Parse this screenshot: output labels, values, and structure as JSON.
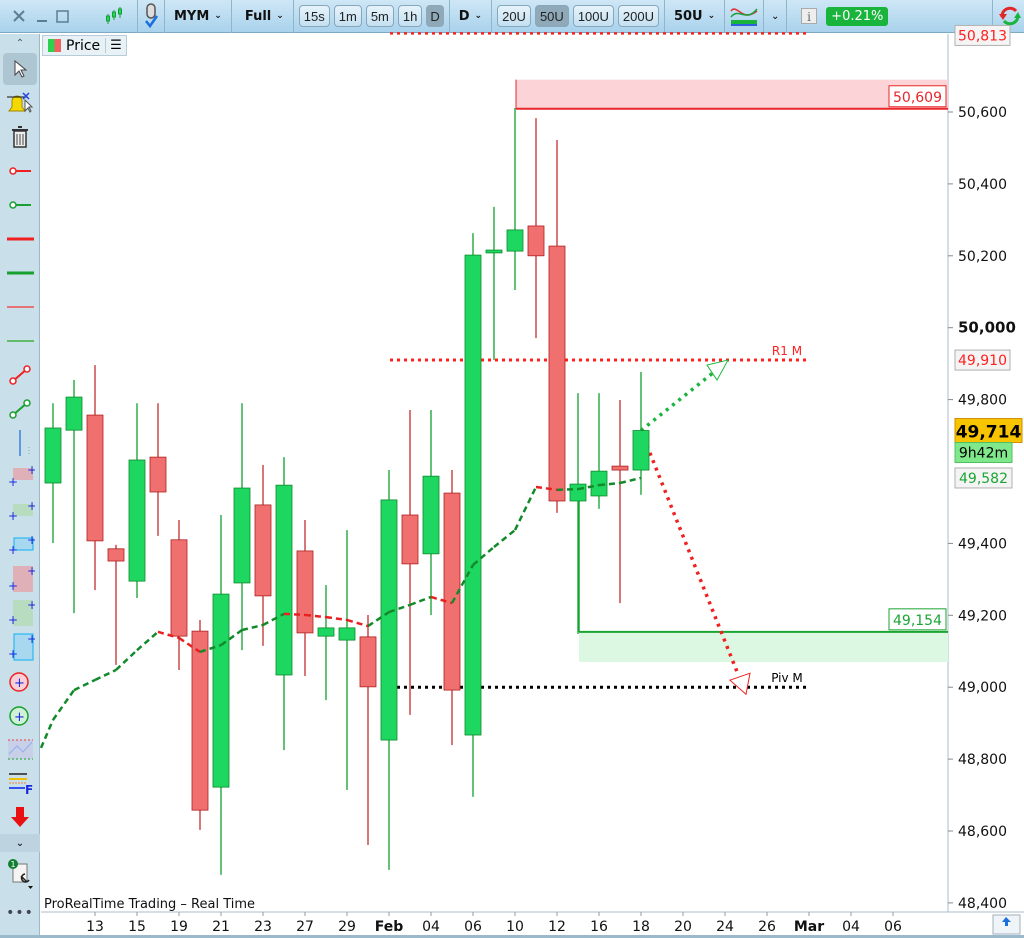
{
  "toolbar": {
    "instrument": "MYM",
    "layout": "Full",
    "timeframes": [
      "15s",
      "1m",
      "5m",
      "1h",
      "D"
    ],
    "selected_timeframe": "D",
    "period": "D",
    "units": [
      "20U",
      "50U",
      "100U",
      "200U"
    ],
    "selected_units": "50U",
    "units_dropdown": "50U",
    "change": "+0.21%",
    "change_color": "#19b43c"
  },
  "price_tab": {
    "label": "Price"
  },
  "status_text": "ProRealTime Trading – Real Time",
  "sidebar_tools": [
    "pointer",
    "alert",
    "delete",
    "horizontal-ray-red",
    "horizontal-ray-green",
    "horizontal-line-red",
    "horizontal-line-green",
    "thin-line-red",
    "thin-line-green",
    "segment-red",
    "segment-green",
    "vertical-line",
    "zone-red",
    "zone-green",
    "zone-blue",
    "rect-red",
    "rect-green",
    "rect-blue",
    "circle-red",
    "circle-green",
    "channel",
    "fibonacci",
    "sell-arrow"
  ],
  "chart_data": {
    "type": "candlestick",
    "title": "",
    "colors": {
      "up": "#1ed760",
      "down": "#f07070",
      "up_border": "#0c8a2c",
      "down_border": "#b02020"
    },
    "candles": [
      {
        "date": "Jan 09",
        "open": 49568,
        "high": 49790,
        "low": 49401,
        "close": 49721
      },
      {
        "date": "Jan 12",
        "open": 49715,
        "high": 49855,
        "low": 49206,
        "close": 49807
      },
      {
        "date": "Jan 13",
        "open": 49757,
        "high": 49896,
        "low": 49270,
        "close": 49407
      },
      {
        "date": "Jan 14",
        "open": 49385,
        "high": 49396,
        "low": 49062,
        "close": 49351
      },
      {
        "date": "Jan 15",
        "open": 49295,
        "high": 49790,
        "low": 49248,
        "close": 49632
      },
      {
        "date": "Jan 16",
        "open": 49640,
        "high": 49790,
        "low": 49421,
        "close": 49543
      },
      {
        "date": "Jan 19",
        "open": 49410,
        "high": 49465,
        "low": 49048,
        "close": 49142
      },
      {
        "date": "Jan 20",
        "open": 49156,
        "high": 49187,
        "low": 48603,
        "close": 48658
      },
      {
        "date": "Jan 21",
        "open": 48722,
        "high": 49479,
        "low": 48478,
        "close": 49259
      },
      {
        "date": "Jan 22",
        "open": 49290,
        "high": 49790,
        "low": 49103,
        "close": 49554
      },
      {
        "date": "Jan 23",
        "open": 49507,
        "high": 49618,
        "low": 49115,
        "close": 49254
      },
      {
        "date": "Jan 26",
        "open": 49034,
        "high": 49640,
        "low": 48825,
        "close": 49562
      },
      {
        "date": "Jan 27",
        "open": 49379,
        "high": 49465,
        "low": 49031,
        "close": 49151
      },
      {
        "date": "Jan 28",
        "open": 49142,
        "high": 49284,
        "low": 48964,
        "close": 49165
      },
      {
        "date": "Jan 29",
        "open": 49131,
        "high": 49437,
        "low": 48714,
        "close": 49165
      },
      {
        "date": "Jan 30",
        "open": 49140,
        "high": 49201,
        "low": 48561,
        "close": 49001
      },
      {
        "date": "Feb 02",
        "open": 48853,
        "high": 49604,
        "low": 48492,
        "close": 49521
      },
      {
        "date": "Feb 03",
        "open": 49479,
        "high": 49771,
        "low": 48923,
        "close": 49343
      },
      {
        "date": "Feb 04",
        "open": 49371,
        "high": 49771,
        "low": 49201,
        "close": 49587
      },
      {
        "date": "Feb 05",
        "open": 49540,
        "high": 49604,
        "low": 48839,
        "close": 48992
      },
      {
        "date": "Feb 06",
        "open": 48867,
        "high": 50263,
        "low": 48695,
        "close": 50202
      },
      {
        "date": "Feb 09",
        "open": 50208,
        "high": 50336,
        "low": 49910,
        "close": 50216
      },
      {
        "date": "Feb 10",
        "open": 50213,
        "high": 50611,
        "low": 50105,
        "close": 50272
      },
      {
        "date": "Feb 11",
        "open": 50283,
        "high": 50583,
        "low": 49971,
        "close": 50200
      },
      {
        "date": "Feb 12",
        "open": 50227,
        "high": 50522,
        "low": 49485,
        "close": 49518
      },
      {
        "date": "Feb 13",
        "open": 49518,
        "high": 49818,
        "low": 49148,
        "close": 49565
      },
      {
        "date": "Feb 16",
        "open": 49532,
        "high": 49818,
        "low": 49496,
        "close": 49601
      },
      {
        "date": "Feb 17",
        "open": 49615,
        "high": 49799,
        "low": 49234,
        "close": 49604
      },
      {
        "date": "Feb 18",
        "open": 49604,
        "high": 49877,
        "low": 49535,
        "close": 49714
      }
    ],
    "moving_average": [
      48909,
      48992,
      49020,
      49048,
      49103,
      49154,
      49137,
      49098,
      49117,
      49159,
      49173,
      49204,
      49201,
      49195,
      49187,
      49170,
      49209,
      49229,
      49251,
      49234,
      49340,
      49390,
      49437,
      49557,
      49549,
      49551,
      49562,
      49568,
      49582
    ],
    "ylim": [
      48400,
      50830
    ],
    "y_ticks": [
      "50,600",
      "50,400",
      "50,200",
      "50,000",
      "49,800",
      "49,400",
      "49,200",
      "49,000",
      "48,800",
      "48,600",
      "48,400"
    ],
    "y_tick_values": [
      50600,
      50400,
      50200,
      50000,
      49800,
      49400,
      49200,
      49000,
      48800,
      48600,
      48400
    ],
    "x_ticks": [
      "13",
      "15",
      "19",
      "21",
      "23",
      "27",
      "29",
      "Feb",
      "04",
      "06",
      "10",
      "12",
      "16",
      "18",
      "20",
      "24",
      "26",
      "Mar",
      "04",
      "06"
    ],
    "x_ticks_bold": [
      "Feb",
      "Mar"
    ],
    "levels": {
      "top": {
        "value": 50813,
        "label": "50,813",
        "color": "#ff2020"
      },
      "resistance": {
        "value": 50609,
        "label": "50,609",
        "color": "#e8262b"
      },
      "r1": {
        "value": 49910,
        "label": "49,910",
        "name": "R1 M",
        "color": "#ff2020"
      },
      "pivot": {
        "value": 49000,
        "name": "Piv M",
        "color": "#000000"
      },
      "support": {
        "value": 49154,
        "label": "49,154",
        "color": "#1aa532"
      },
      "ma_last": {
        "value": 49582,
        "label": "49,582",
        "color": "#1aa532"
      }
    },
    "last_price": {
      "value": 49714,
      "label": "49,714",
      "countdown": "9h42m"
    }
  }
}
